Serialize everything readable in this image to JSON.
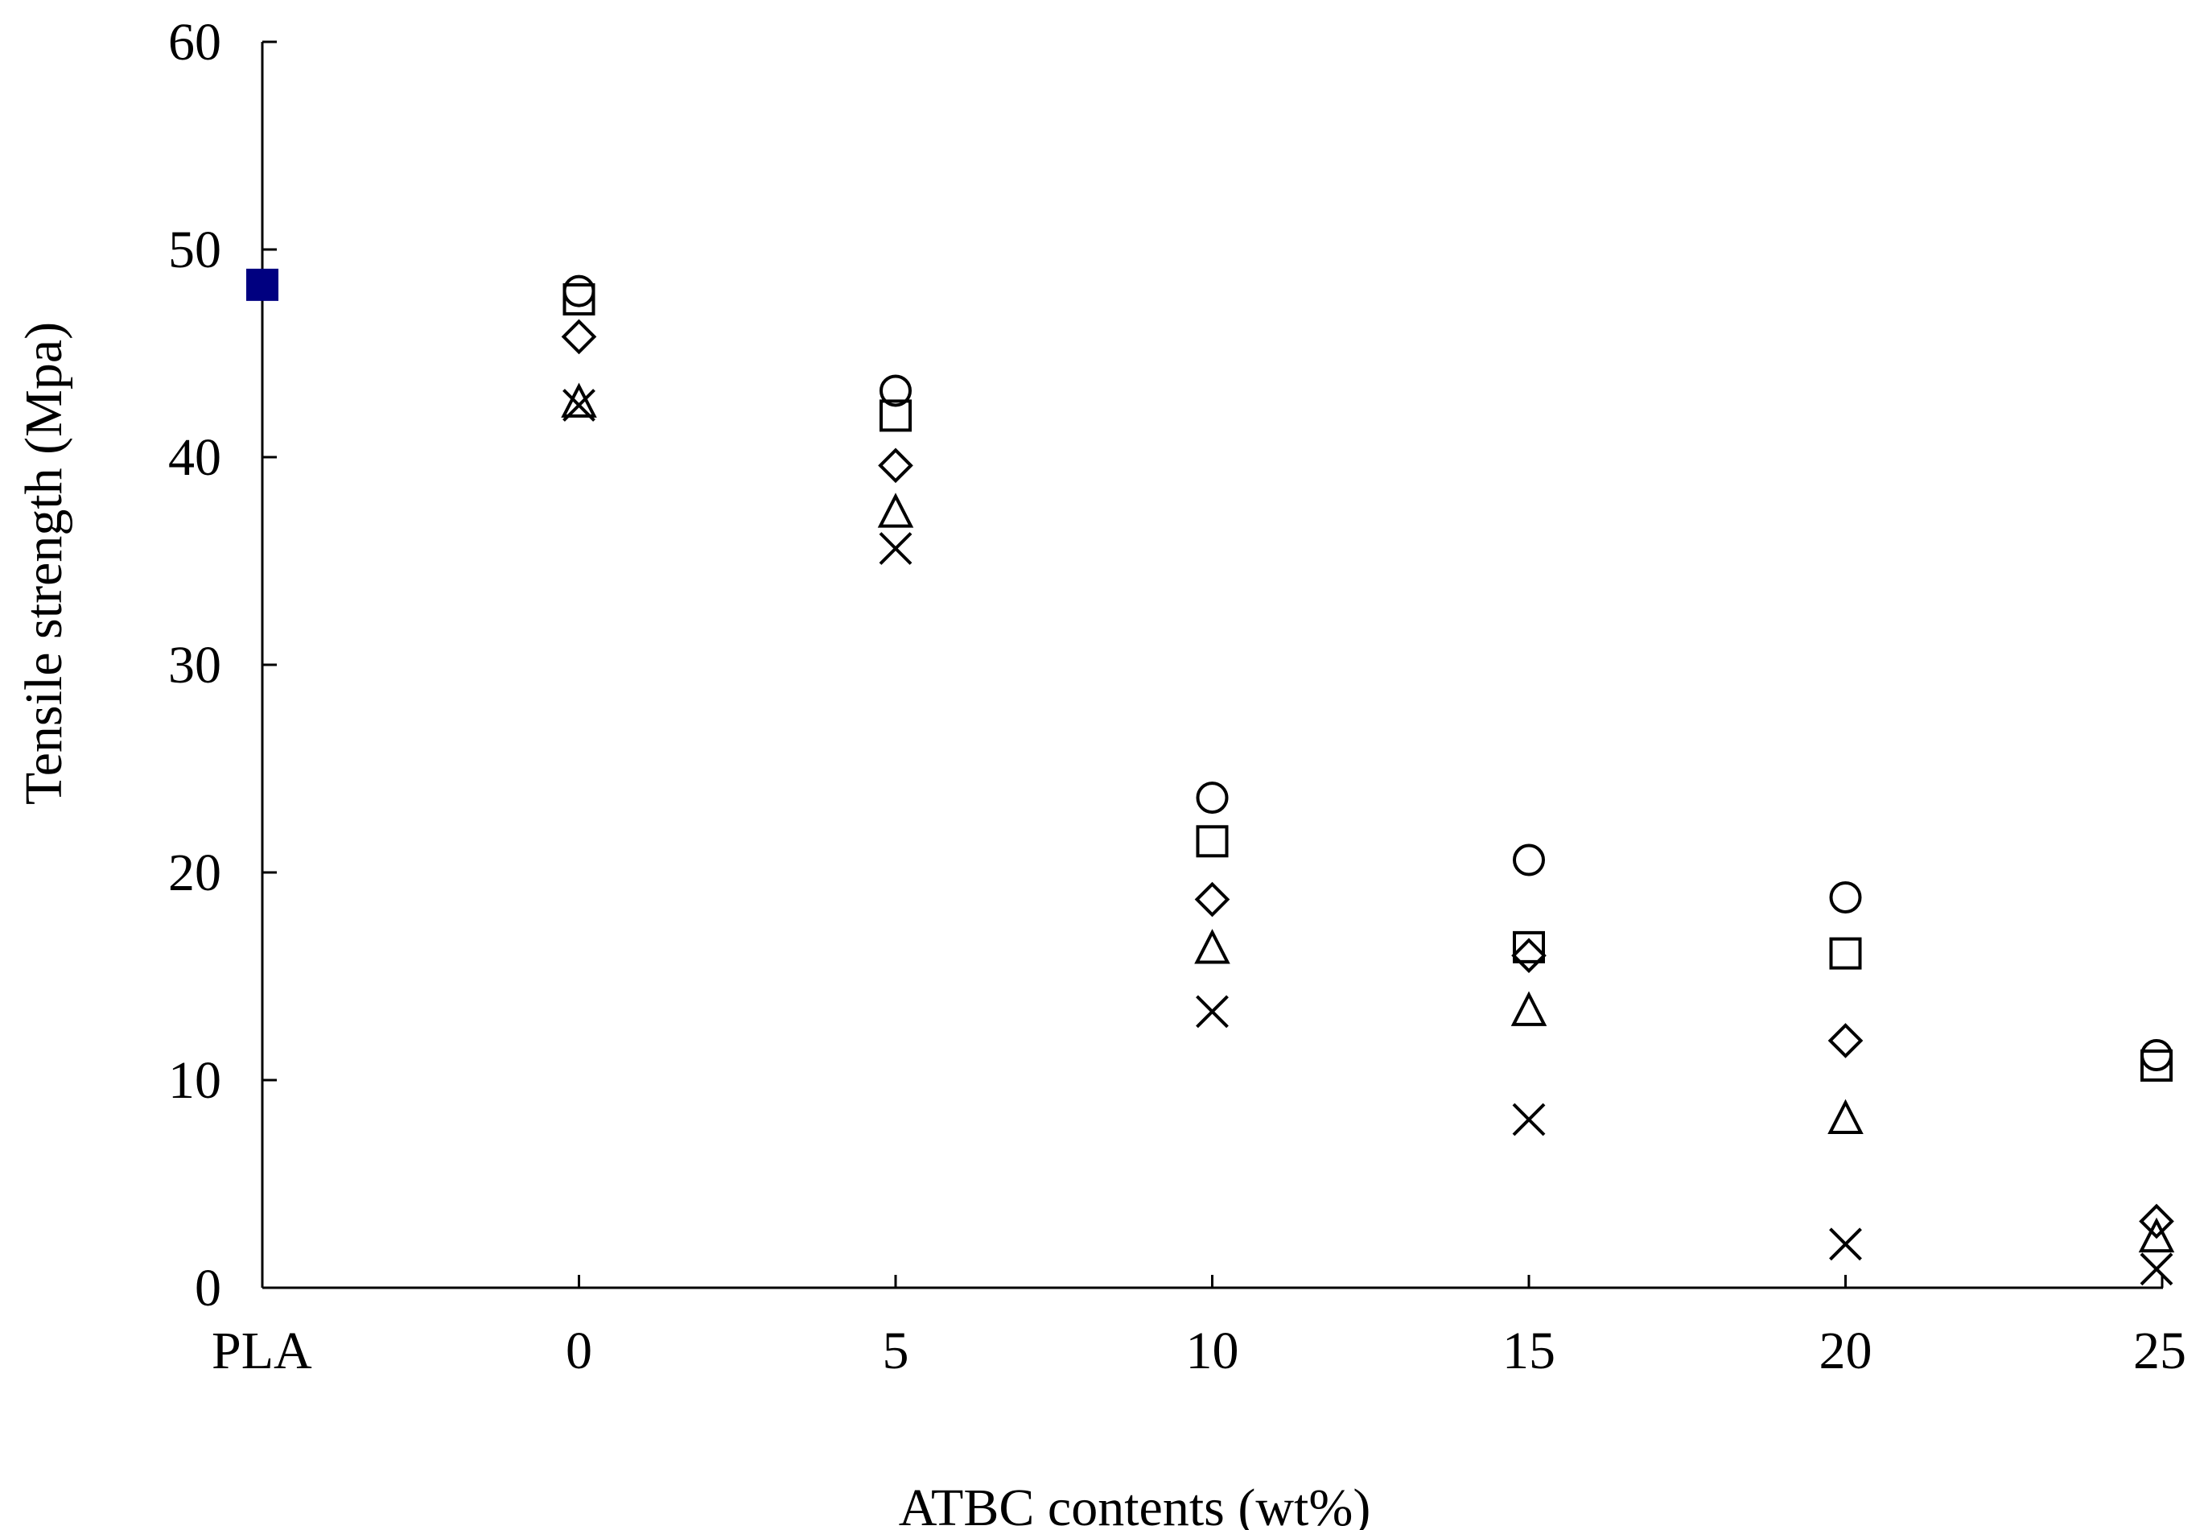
{
  "chart_data": {
    "type": "scatter",
    "title": "",
    "xlabel": "ATBC contents (wt%)",
    "ylabel": "Tensile strength (Mpa)",
    "categories": [
      "PLA",
      "0",
      "5",
      "10",
      "15",
      "20",
      "25"
    ],
    "ylim": [
      0,
      60
    ],
    "yticks": [
      "0",
      "10",
      "20",
      "30",
      "40",
      "50",
      "60"
    ],
    "grid": false,
    "legend": "none",
    "series": [
      {
        "marker": "filled-square",
        "color": "#000080",
        "values": [
          48.3,
          null,
          null,
          null,
          null,
          null,
          null
        ]
      },
      {
        "marker": "circle",
        "color": "#000000",
        "values": [
          null,
          48.0,
          43.2,
          23.6,
          20.6,
          18.8,
          11.2
        ]
      },
      {
        "marker": "square",
        "color": "#000000",
        "values": [
          null,
          47.6,
          42.0,
          21.5,
          16.4,
          16.1,
          10.7
        ]
      },
      {
        "marker": "diamond",
        "color": "#000000",
        "values": [
          null,
          45.8,
          39.6,
          18.7,
          16.0,
          11.9,
          3.2
        ]
      },
      {
        "marker": "triangle",
        "color": "#000000",
        "values": [
          null,
          42.6,
          37.3,
          16.3,
          13.3,
          8.1,
          2.4
        ]
      },
      {
        "marker": "cross",
        "color": "#000000",
        "values": [
          null,
          42.5,
          35.6,
          13.3,
          8.1,
          2.1,
          0.9
        ]
      }
    ]
  }
}
